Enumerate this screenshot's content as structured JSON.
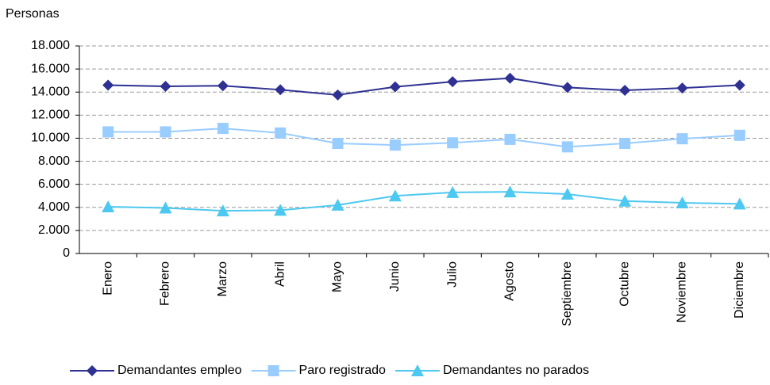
{
  "chart_data": {
    "type": "line",
    "y_label": "Personas",
    "categories": [
      "Enero",
      "Febrero",
      "Marzo",
      "Abril",
      "Mayo",
      "Junio",
      "Julio",
      "Agosto",
      "Septiembre",
      "Octubre",
      "Noviembre",
      "Diciembre"
    ],
    "series": [
      {
        "name": "Demandantes empleo",
        "color": "#2e3192",
        "marker": "diamond",
        "values": [
          14600,
          14500,
          14550,
          14200,
          13750,
          14450,
          14900,
          15200,
          14400,
          14150,
          14350,
          14600
        ]
      },
      {
        "name": "Paro registrado",
        "color": "#99ccff",
        "marker": "square",
        "values": [
          10550,
          10550,
          10850,
          10450,
          9550,
          9400,
          9600,
          9900,
          9250,
          9550,
          9950,
          10250
        ]
      },
      {
        "name": "Demandantes no parados",
        "color": "#4dc8f0",
        "marker": "triangle",
        "values": [
          4050,
          3950,
          3700,
          3750,
          4200,
          5000,
          5300,
          5350,
          5150,
          4550,
          4400,
          4300
        ]
      }
    ],
    "ylim": [
      0,
      18000
    ],
    "yticks": [
      0,
      {
        "value": 2000,
        "label": "2.000"
      },
      {
        "value": 4000,
        "label": "4.000"
      },
      {
        "value": 6000,
        "label": "6.000"
      },
      {
        "value": 8000,
        "label": "8.000"
      },
      {
        "value": 10000,
        "label": "10.000"
      },
      {
        "value": 12000,
        "label": "12.000"
      },
      {
        "value": 14000,
        "label": "14.000"
      },
      {
        "value": 16000,
        "label": "16.000"
      },
      {
        "value": 18000,
        "label": "18.000"
      }
    ],
    "grid": true,
    "legend": "bottom"
  }
}
